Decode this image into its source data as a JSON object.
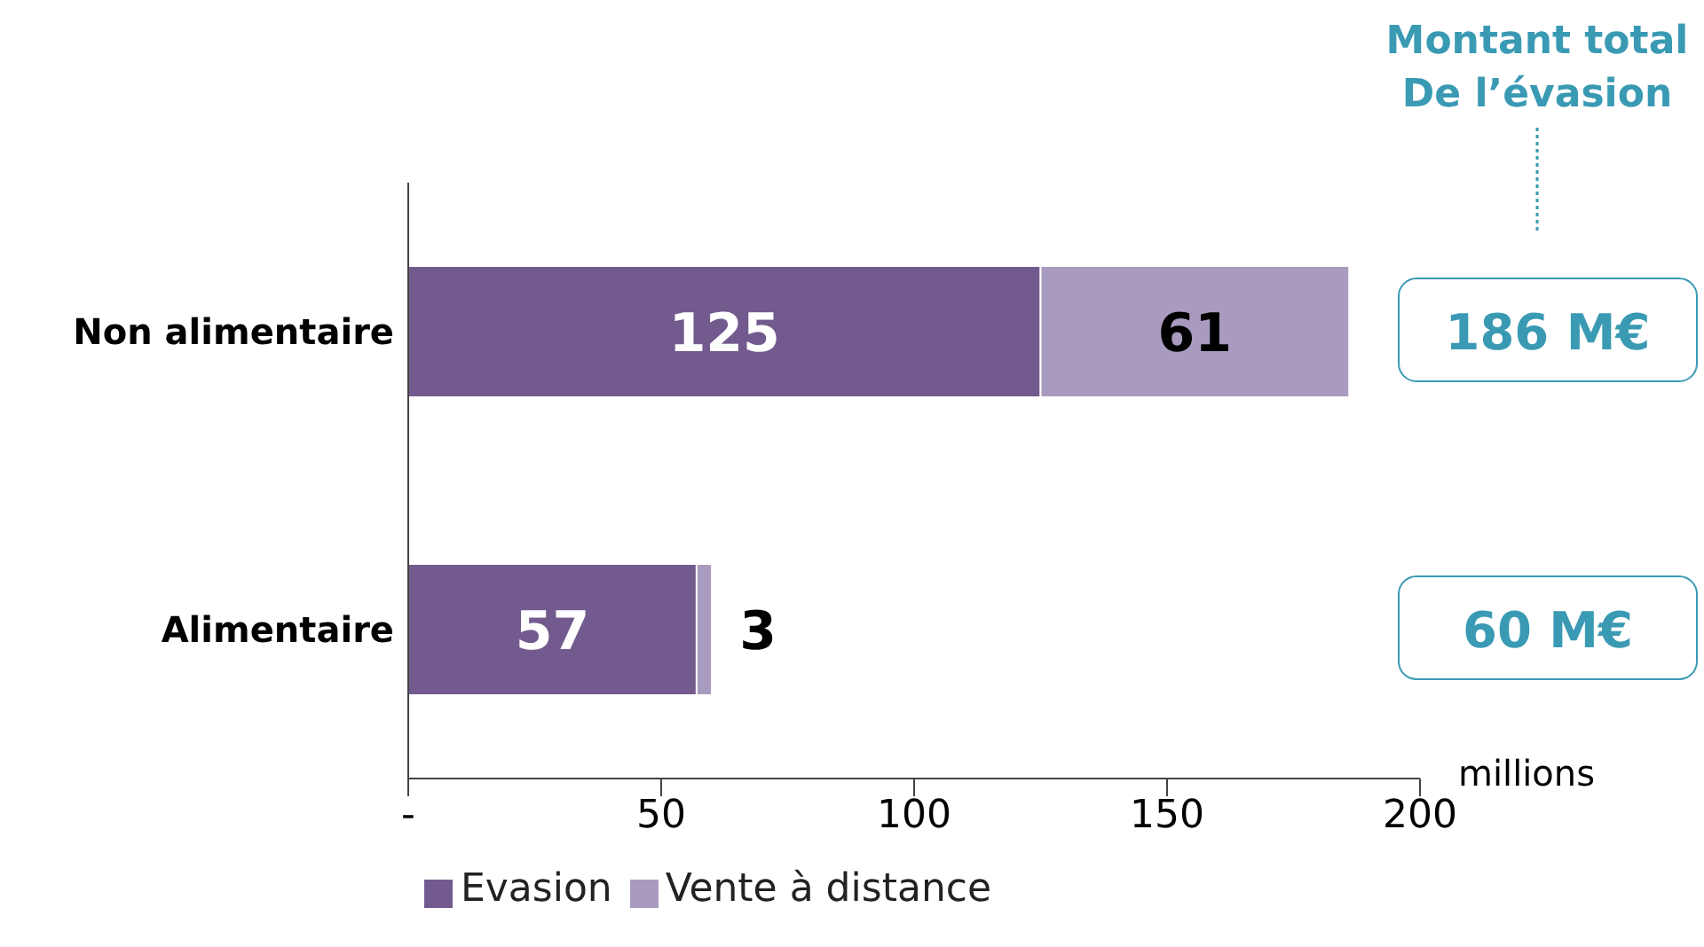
{
  "chart_data": {
    "type": "bar",
    "orientation": "horizontal",
    "stacked": true,
    "categories": [
      "Non alimentaire",
      "Alimentaire"
    ],
    "series": [
      {
        "name": "Evasion",
        "color": "#725a8e",
        "values": [
          125,
          57
        ]
      },
      {
        "name": "Vente à distance",
        "color": "#a99bbf",
        "values": [
          61,
          3
        ]
      }
    ],
    "xlim": [
      0,
      200
    ],
    "xticks": [
      {
        "value": 0,
        "label": "-"
      },
      50,
      100,
      150,
      200
    ],
    "xlabel": "millions",
    "data_labels": true,
    "annotations": [
      "Montant total\nDe l’évasion",
      "186 M€",
      "60 M€"
    ],
    "legend": "bottom"
  }
}
